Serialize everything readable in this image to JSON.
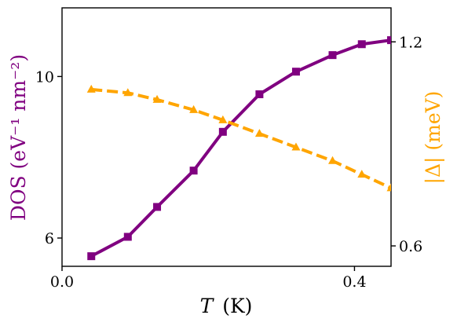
{
  "colors": {
    "dos": "#800080",
    "gap": "#FFA500",
    "axis": "#000000",
    "background": "#ffffff"
  },
  "chart_data": {
    "type": "line",
    "title": "",
    "xlabel": "T (K)",
    "xlabel_italic_part": "T",
    "xlabel_unit": "(K)",
    "ylabel_left": "DOS (eV⁻¹ nm⁻²)",
    "ylabel_right": "|Δ| (meV)",
    "xlim": [
      0.0,
      0.45
    ],
    "ylim_left": [
      5.3,
      11.7
    ],
    "ylim_right": [
      0.54,
      1.3
    ],
    "xticks": [
      0.0,
      0.4
    ],
    "xtick_labels": [
      "0.0",
      "0.4"
    ],
    "yticks_left": [
      6,
      10
    ],
    "ytick_labels_left": [
      "6",
      "10"
    ],
    "yticks_right": [
      0.6,
      1.2
    ],
    "ytick_labels_right": [
      "0.6",
      "1.2"
    ],
    "grid": false,
    "legend": null,
    "series": [
      {
        "axis": "left",
        "color": "#800080",
        "linestyle": "solid",
        "marker": "square",
        "x": [
          0.04,
          0.09,
          0.13,
          0.18,
          0.22,
          0.27,
          0.32,
          0.37,
          0.41,
          0.45
        ],
        "y": [
          5.55,
          6.03,
          6.77,
          7.67,
          8.63,
          9.56,
          10.12,
          10.53,
          10.8,
          10.9
        ]
      },
      {
        "axis": "right",
        "color": "#FFA500",
        "linestyle": "dashed",
        "marker": "triangle",
        "x": [
          0.04,
          0.09,
          0.13,
          0.18,
          0.22,
          0.27,
          0.32,
          0.37,
          0.41,
          0.45
        ],
        "y": [
          1.06,
          1.05,
          1.03,
          1.0,
          0.97,
          0.93,
          0.89,
          0.85,
          0.81,
          0.77
        ]
      }
    ]
  }
}
